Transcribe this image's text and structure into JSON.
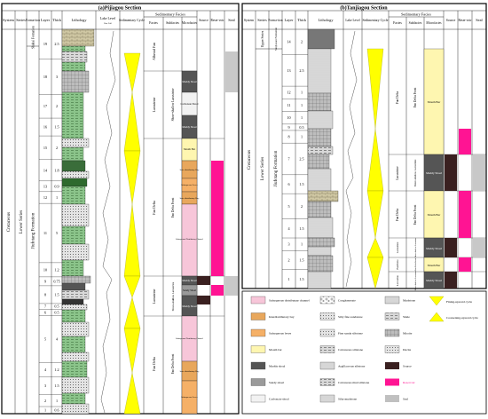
{
  "section_a": {
    "title": "(a)Pijiagou Section",
    "headers": {
      "system": "System",
      "series": "Series",
      "formation": "Forma-tion",
      "layer": "Layer",
      "thick": "Thick",
      "lithology": "Lithology",
      "lake_level": "Lake Level",
      "lake_level_sub": "Rise   Fall",
      "cycle": "Sedimentary Cycle",
      "facies_group": "Sedimentary Facies",
      "facies": "Facies",
      "subfacies": "Subfacies",
      "microfacies": "Microfacies",
      "source": "Source",
      "reservoir": "Reser-voir",
      "seal": "Seal"
    },
    "system": "Cretaceous",
    "series": "Lower Series",
    "formations": [
      "Shahai Formation",
      "Jiufotang Formation"
    ],
    "layers": [
      {
        "layer": "19",
        "thick": "2.5"
      },
      {
        "layer": "18",
        "thick": "3"
      },
      {
        "layer": "17",
        "thick": "2"
      },
      {
        "layer": "16",
        "thick": "1.5"
      },
      {
        "layer": "15",
        "thick": "2"
      },
      {
        "layer": "14",
        "thick": "1.8"
      },
      {
        "layer": "13",
        "thick": "0.9"
      },
      {
        "layer": "12",
        "thick": "1"
      },
      {
        "layer": "11",
        "thick": "5"
      },
      {
        "layer": "10",
        "thick": "1.2"
      },
      {
        "layer": "9",
        "thick": "0.75"
      },
      {
        "layer": "8",
        "thick": "1.5"
      },
      {
        "layer": "7",
        "thick": "0.5"
      },
      {
        "layer": "6",
        "thick": "0.5"
      },
      {
        "layer": "5",
        "thick": "4"
      },
      {
        "layer": "4",
        "thick": "1.2"
      },
      {
        "layer": "3",
        "thick": "1.5"
      },
      {
        "layer": "2",
        "thick": "1"
      },
      {
        "layer": "1",
        "thick": "0.6"
      }
    ],
    "facies": [
      "Alluvial Fan",
      "Lacustrine",
      "Fan Delta",
      "Lacustrine",
      "Fan Delta"
    ],
    "subfacies": [
      "Shore-shallow Lacustrine",
      "Fan Delta Front",
      "Shore-shallow Lacustrine",
      "Fan Delta Front"
    ],
    "microfacies": [
      "Muddy Shoal",
      "Carbonate Shoal",
      "Muddy Shoal",
      "Mouth Bar",
      "Inter-distributary Bay",
      "Subaqueous Levee",
      "Inter-distributary Bay",
      "Subaqueous Distributary Channel",
      "Muddy Shoal",
      "Sandy Shoal",
      "Muddy Shoal",
      "Subaqueous Distributary Channel",
      "Inter-distributary Bay",
      "Subaqueous Levee"
    ]
  },
  "section_b": {
    "title": "(b)Tanjiagou Section",
    "headers": {
      "system": "System",
      "series": "Series",
      "formation": "Forma-tion",
      "layer": "Layer",
      "thick": "Thick",
      "lithology": "Lithology",
      "lake_level": "Lake Level",
      "cycle": "Sedimentary Cycle",
      "facies_group": "Sedimentary Facies",
      "facies": "Facies",
      "subfacies": "Subfacies",
      "microfacies": "Microfacies",
      "source": "Source",
      "reservoir": "Reser-voir",
      "seal": "Seal"
    },
    "system": "Cretaceous",
    "series": [
      "Upper Series",
      "Lower Series"
    ],
    "formations": [
      "Sunjiawan Formation",
      "Jiufotang Formation"
    ],
    "layers": [
      {
        "layer": "14",
        "thick": "2"
      },
      {
        "layer": "13",
        "thick": "2.5"
      },
      {
        "layer": "12",
        "thick": "1"
      },
      {
        "layer": "11",
        "thick": "1"
      },
      {
        "layer": "10",
        "thick": "1"
      },
      {
        "layer": "9",
        "thick": "0.5"
      },
      {
        "layer": "8",
        "thick": "1"
      },
      {
        "layer": "7",
        "thick": "2.5"
      },
      {
        "layer": "6",
        "thick": "1.5"
      },
      {
        "layer": "5",
        "thick": "2"
      },
      {
        "layer": "4",
        "thick": "1.5"
      },
      {
        "layer": "3",
        "thick": "1"
      },
      {
        "layer": "2",
        "thick": "1.5"
      },
      {
        "layer": "1",
        "thick": "1.5"
      }
    ],
    "facies": [
      "Fan Delta",
      "Lacustrine",
      "Fan Delta",
      "Lacustrine",
      "Fan Delta",
      "Lacustrine"
    ],
    "subfacies": [
      "Fan Delta Front",
      "Shore-shallow Lacustrine",
      "Fan Delta Front",
      "Shore-shallow Lacustrine",
      "Fan Delta Front",
      "Shore-shallow Lacustrine"
    ],
    "microfacies": [
      "Mouth Bar",
      "Muddy Shoal",
      "Mouth Bar",
      "Muddy Shoal",
      "Mouth Bar",
      "Muddy Shoal"
    ]
  },
  "legend": {
    "facies_items": [
      {
        "label": "Subaqueous distributary channel",
        "color": "#f7c6d9"
      },
      {
        "label": "Interdistributary bay",
        "color": "#e8a75c"
      },
      {
        "label": "Subaqueous levee",
        "color": "#f5b067"
      },
      {
        "label": "Mouth bar",
        "color": "#fef6b0"
      },
      {
        "label": "Muddy shoal",
        "color": "#555555"
      },
      {
        "label": "Sandy shoal",
        "color": "#9a9a9a"
      },
      {
        "label": "Carbonate shoal",
        "color": "#f2f2f2"
      }
    ],
    "litho_items_1": [
      "Conglomerate",
      "Silty fine sandstone",
      "Fine sandy siltstone",
      "Calcareous siltstone",
      "Argillaceous siltstone",
      "Calcareous mud siltstone",
      "Silty mudstone"
    ],
    "litho_items_2": [
      "Mudstone",
      "Shale",
      "Micrite",
      "Dacite"
    ],
    "indicator_items": [
      {
        "label": "Source",
        "color": "#3a2020"
      },
      {
        "label": "Reservoir",
        "color": "#ff1493"
      },
      {
        "label": "Seal",
        "color": "#c0c0c0"
      }
    ],
    "cycle_items": [
      "Fining-upward cycle",
      "Coarsening-upward cycle"
    ]
  },
  "colors": {
    "cycle": "#ffff00",
    "reservoir": "#ff1493",
    "source": "#3a2020",
    "seal": "#c8c8c8",
    "muddy_shoal": "#555555",
    "mouth_bar": "#fef6b0"
  }
}
